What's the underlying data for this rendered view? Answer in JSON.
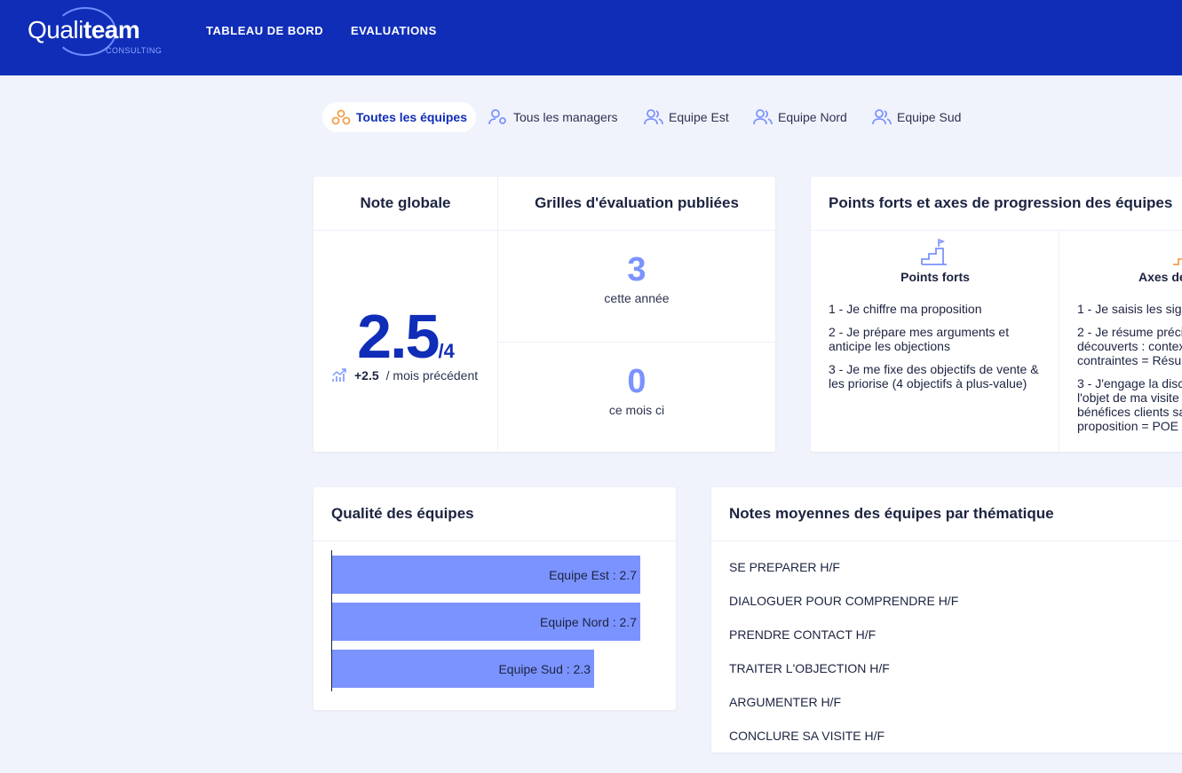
{
  "brand": {
    "logo_light": "Quali",
    "logo_bold": "team",
    "logo_sub": "CONSULTING"
  },
  "nav": {
    "items": [
      "TABLEAU DE BORD",
      "EVALUATIONS"
    ]
  },
  "tabs": [
    {
      "label": "Toutes les équipes",
      "icon": "teams-icon",
      "active": true
    },
    {
      "label": "Tous les managers",
      "icon": "user-gear-icon",
      "active": false
    },
    {
      "label": "Equipe Est",
      "icon": "users-icon",
      "active": false
    },
    {
      "label": "Equipe Nord",
      "icon": "users-icon",
      "active": false
    },
    {
      "label": "Equipe Sud",
      "icon": "users-icon",
      "active": false
    }
  ],
  "global_score": {
    "title": "Note globale",
    "value": "2.5",
    "max": "/4",
    "trend_value": "+2.5",
    "trend_label": "/ mois précédent",
    "trend_icon": "trending-up-icon"
  },
  "grids": {
    "title": "Grilles d'évaluation publiées",
    "year_count": "3",
    "year_label": "cette année",
    "month_count": "0",
    "month_label": "ce mois ci"
  },
  "strengths": {
    "title": "Points forts et axes de progression des équipes",
    "strong_title": "Points forts",
    "strong_items": [
      "1 - Je chiffre ma proposition",
      "2 - Je prépare mes arguments et anticipe les objections",
      "3 - Je me fixe des objectifs de vente & les priorise (4 objectifs à plus-value)"
    ],
    "axes_title": "Axes de",
    "axes_items": [
      "1 - Je saisis les sig",
      "2 - Je résume préci\ndécouverts : contex\ncontraintes = Résum",
      "3 - J'engage la disc\nl'objet de ma visite\nbénéfices clients sa\nproposition = POE"
    ]
  },
  "team_quality": {
    "title": "Qualité des équipes",
    "color": "#7b93ff"
  },
  "chart_data": {
    "type": "bar",
    "orientation": "horizontal",
    "categories": [
      "Equipe Est",
      "Equipe Nord",
      "Equipe Sud"
    ],
    "values": [
      2.7,
      2.7,
      2.3
    ],
    "labels": [
      "Equipe Est : 2.7",
      "Equipe Nord : 2.7",
      "Equipe Sud : 2.3"
    ],
    "xlim": [
      0,
      3.0
    ],
    "title": "",
    "xlabel": "",
    "ylabel": ""
  },
  "themes": {
    "title": "Notes moyennes des équipes par thématique",
    "items": [
      "SE PREPARER H/F",
      "DIALOGUER POUR COMPRENDRE H/F",
      "PRENDRE CONTACT H/F",
      "TRAITER L'OBJECTION H/F",
      "ARGUMENTER H/F",
      "CONCLURE SA VISITE H/F"
    ]
  }
}
